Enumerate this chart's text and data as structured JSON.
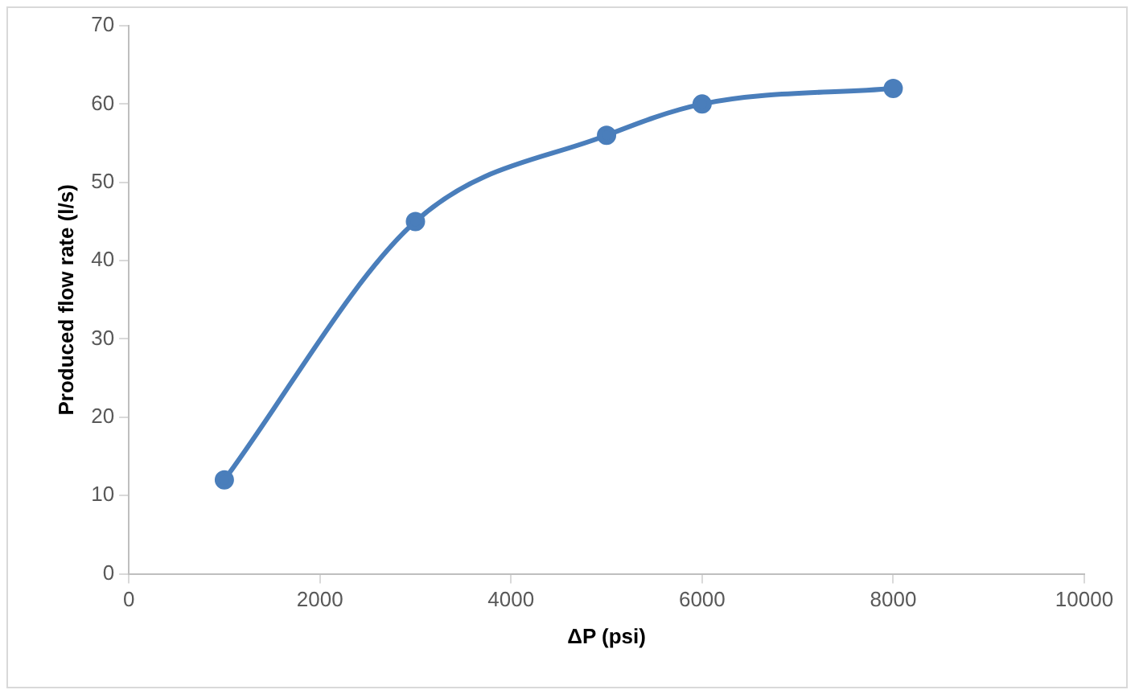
{
  "chart_data": {
    "type": "line",
    "xlabel": "ΔP (psi)",
    "ylabel": "Produced flow rate (l/s)",
    "x": [
      1000,
      3000,
      5000,
      6000,
      8000
    ],
    "series": [
      {
        "color": "#4a7ebb",
        "values": [
          12,
          45,
          56,
          60,
          62
        ]
      }
    ],
    "xlim": [
      0,
      10000
    ],
    "xticks": [
      0,
      2000,
      4000,
      6000,
      8000,
      10000
    ],
    "ylim": [
      0,
      70
    ],
    "yticks": [
      0,
      10,
      20,
      30,
      40,
      50,
      60,
      70
    ],
    "grid": false,
    "legend": false,
    "marker": "circle",
    "line_style": "solid"
  }
}
